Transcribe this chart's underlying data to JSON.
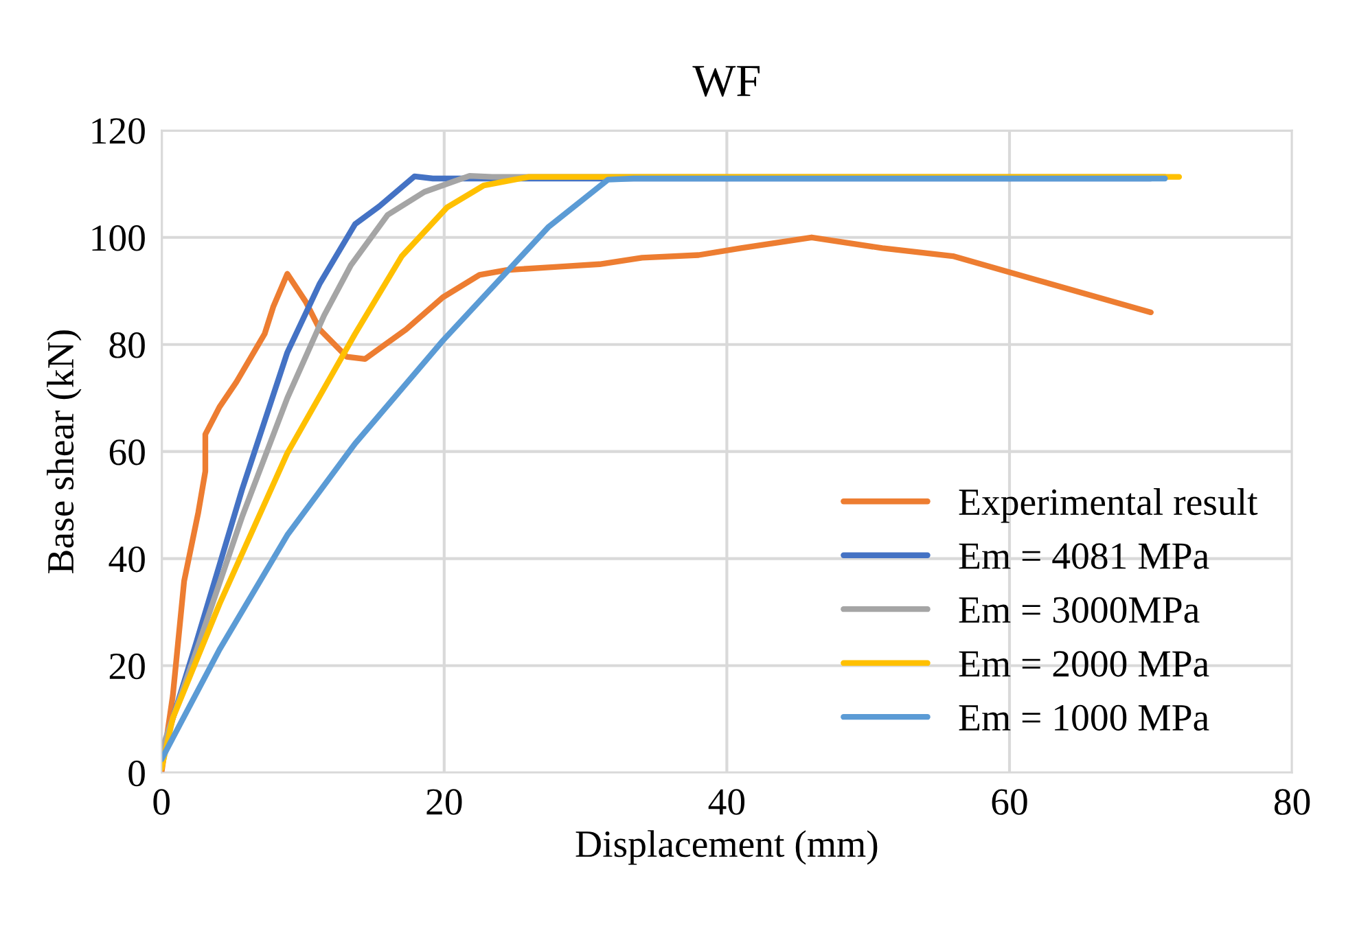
{
  "chart_data": {
    "type": "line",
    "title": "WF",
    "xlabel": "Displacement (mm)",
    "ylabel": "Base shear (kN)",
    "xlim": [
      0,
      80
    ],
    "xticks": [
      0,
      20,
      40,
      60,
      80
    ],
    "ylim": [
      0,
      120
    ],
    "yticks": [
      0,
      20,
      40,
      60,
      80,
      100,
      120
    ],
    "grid": true,
    "legend": "bottom right",
    "marker": "none",
    "line_style": "solid",
    "series": [
      {
        "name": "Experimental result",
        "color": "#ed7d31",
        "x": [
          0,
          0.8,
          1.6,
          2.6,
          3.1,
          3.1,
          4.1,
          5.3,
          7.3,
          7.9,
          8.9,
          10.2,
          11.2,
          13.1,
          14.4,
          17.3,
          19.9,
          22.5,
          24.4,
          28,
          31,
          34,
          38,
          41,
          46,
          51,
          56,
          62,
          70
        ],
        "values": [
          0,
          14.4,
          35.8,
          48.6,
          56.3,
          63.2,
          68.3,
          73,
          82,
          87,
          93.2,
          88,
          82.8,
          77.7,
          77.3,
          82.8,
          88.8,
          93,
          93.9,
          94.5,
          95,
          96.2,
          96.7,
          98,
          100,
          98,
          96.5,
          92,
          86
        ]
      },
      {
        "name": "Em = 4081 MPa",
        "color": "#4472c4",
        "x": [
          0,
          2.5,
          5.7,
          8.9,
          11.2,
          13.7,
          15.4,
          17.9,
          19.2,
          70
        ],
        "values": [
          3.3,
          24.7,
          52.9,
          78.5,
          91.4,
          102.5,
          105.8,
          111.4,
          111,
          111
        ]
      },
      {
        "name": "Em = 3000MPa",
        "color": "#a5a5a5",
        "x": [
          0,
          2.5,
          5.7,
          8.9,
          11.5,
          13.4,
          16,
          18.6,
          21.8,
          23.4,
          71
        ],
        "values": [
          4.2,
          23,
          47.8,
          70,
          85.4,
          94.8,
          104.2,
          108.5,
          111.5,
          111.3,
          111.3
        ]
      },
      {
        "name": "Em = 2000 MPa",
        "color": "#ffc000",
        "x": [
          0,
          0.8,
          4.1,
          8.9,
          13.7,
          17,
          20.2,
          22.8,
          26,
          72
        ],
        "values": [
          0.8,
          10.2,
          31.5,
          59.7,
          82,
          96.5,
          105.6,
          109.7,
          111.3,
          111.3
        ]
      },
      {
        "name": "Em = 1000 MPa",
        "color": "#5b9bd5",
        "x": [
          0,
          4.1,
          8.9,
          13.7,
          19.9,
          27.4,
          31.6,
          33.4,
          71
        ],
        "values": [
          2.5,
          23,
          44.4,
          61.5,
          80.7,
          102,
          110.8,
          111,
          111
        ]
      }
    ]
  }
}
